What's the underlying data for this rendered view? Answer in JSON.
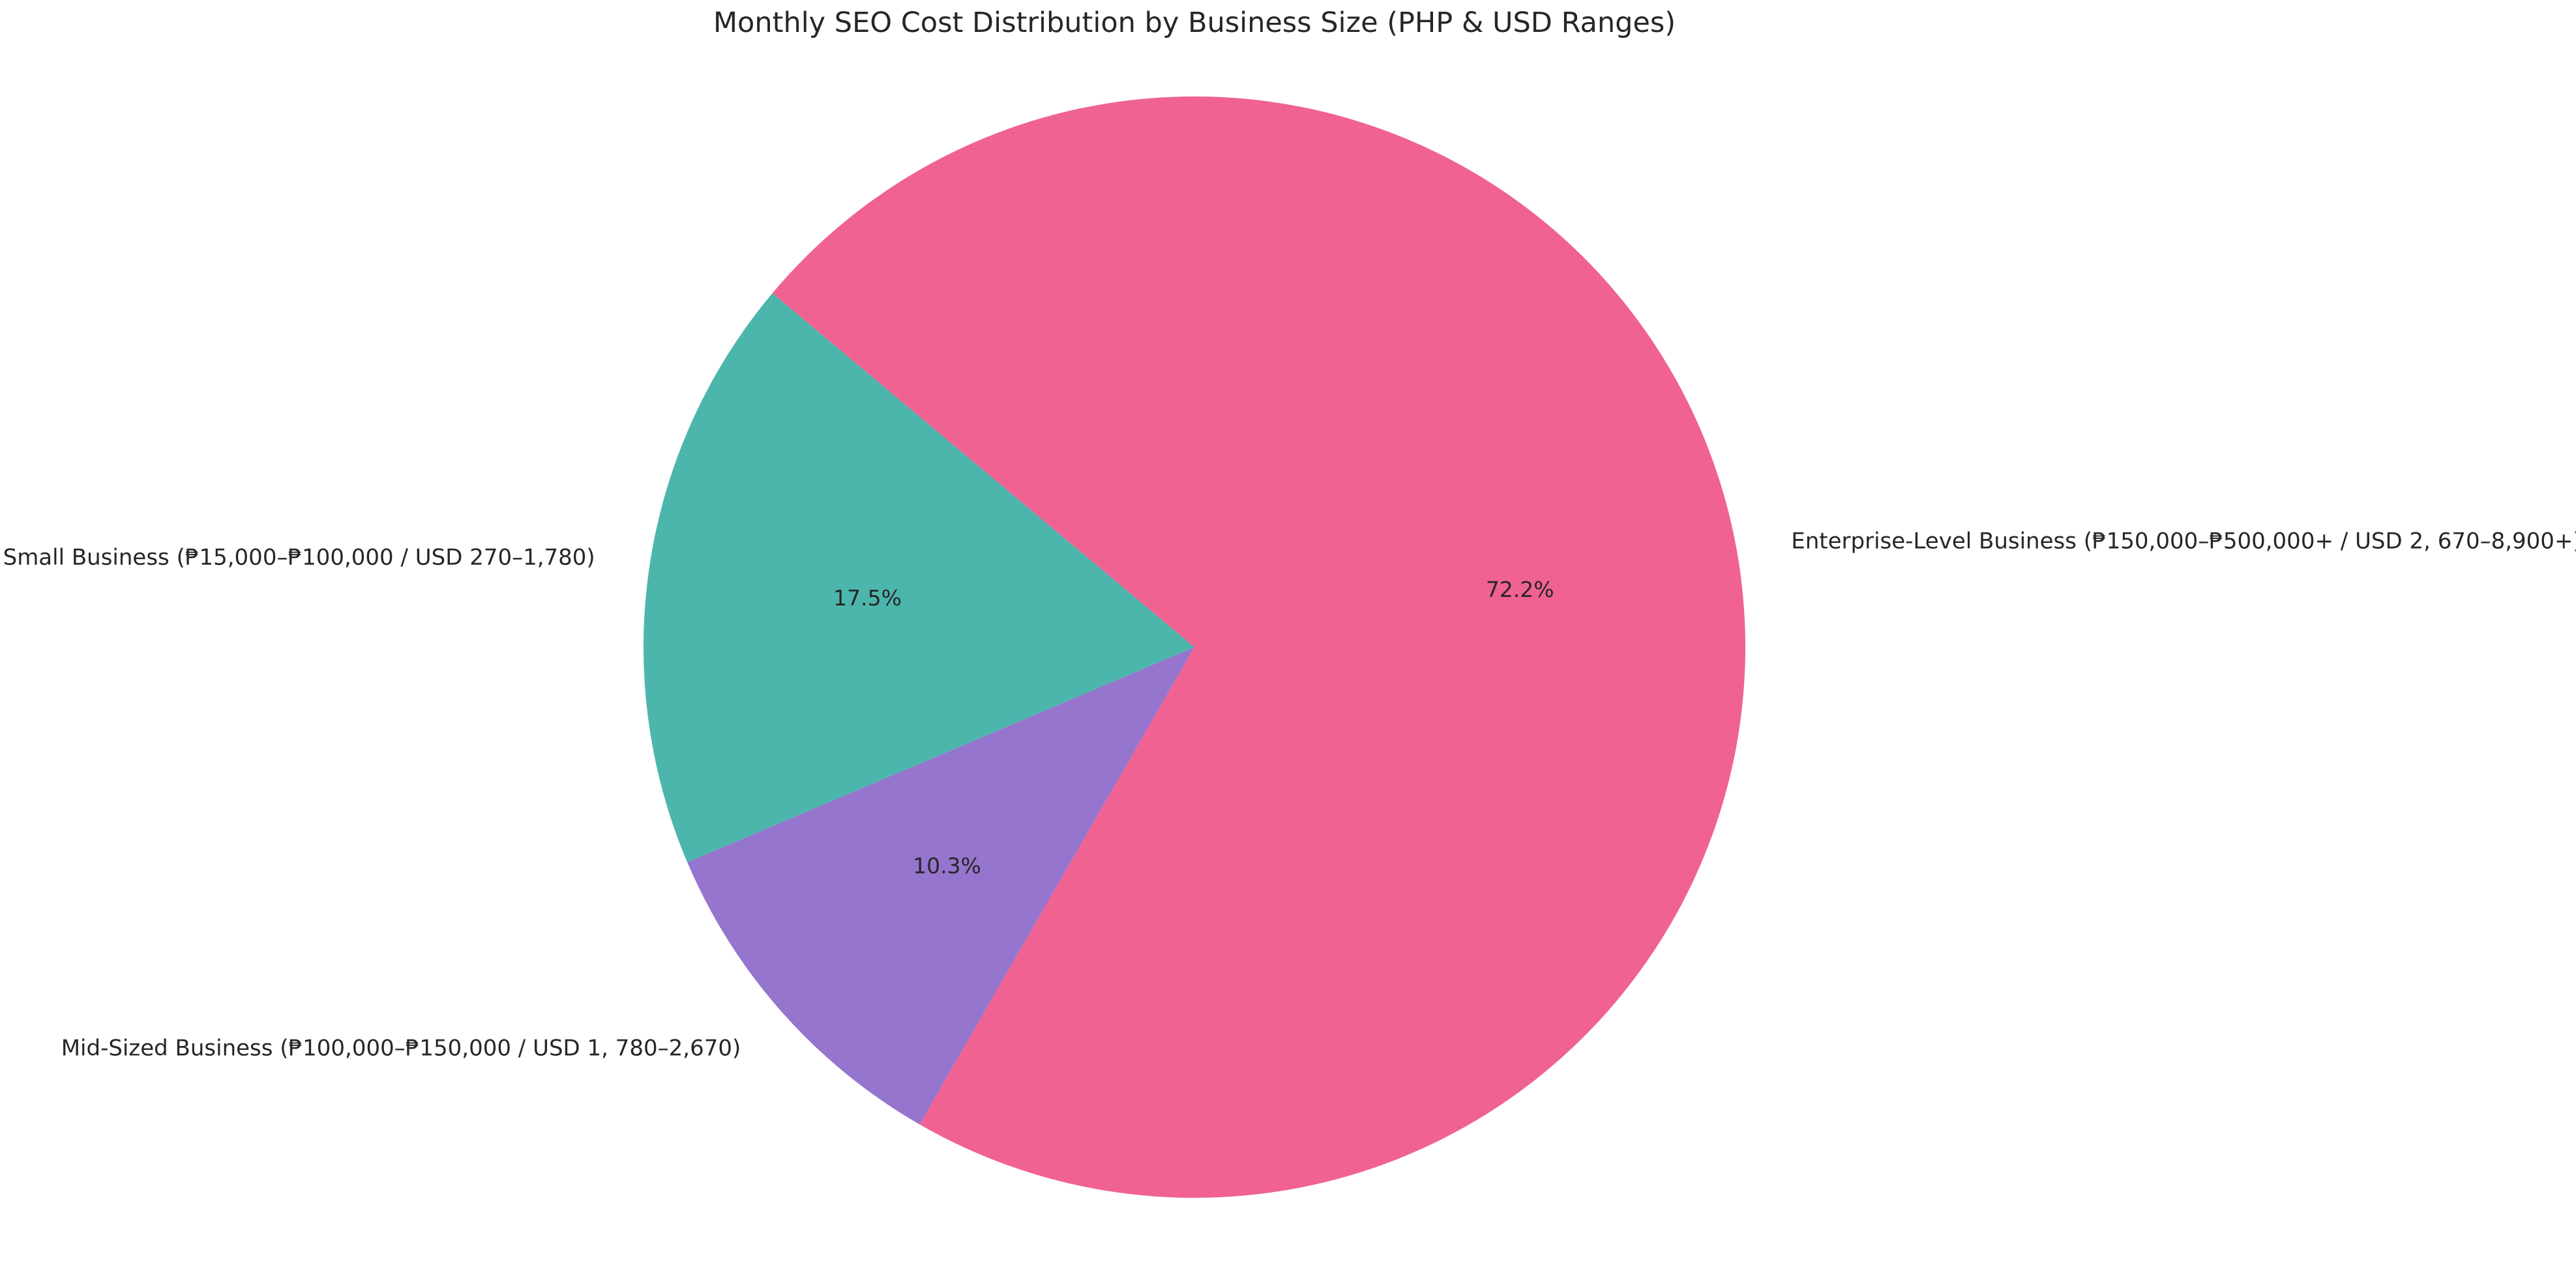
{
  "figure": {
    "background": "#ffffff",
    "text_color": "#262626"
  },
  "chart_data": {
    "type": "pie",
    "title": "Monthly SEO Cost Distribution by Business Size (PHP & USD Ranges)",
    "slices": [
      {
        "label": "Small Business (₱15,000–₱100,000 / USD 270–1,780)",
        "value": 17.5,
        "pct_label": "17.5%",
        "color": "#4DB6AC"
      },
      {
        "label": "Mid-Sized Business (₱100,000–₱150,000 / USD 1, 780–2,670)",
        "value": 10.3,
        "pct_label": "10.3%",
        "color": "#9575CD"
      },
      {
        "label": "Enterprise-Level Business (₱150,000–₱500,000+ / USD 2, 670–8,900+)",
        "value": 72.2,
        "pct_label": "72.2%",
        "color": "#F06292"
      }
    ],
    "startangle": 140,
    "direction": "counterclockwise",
    "legend": "none",
    "pct_radius_fraction": 0.6,
    "label_radius_fraction": 1.1
  }
}
